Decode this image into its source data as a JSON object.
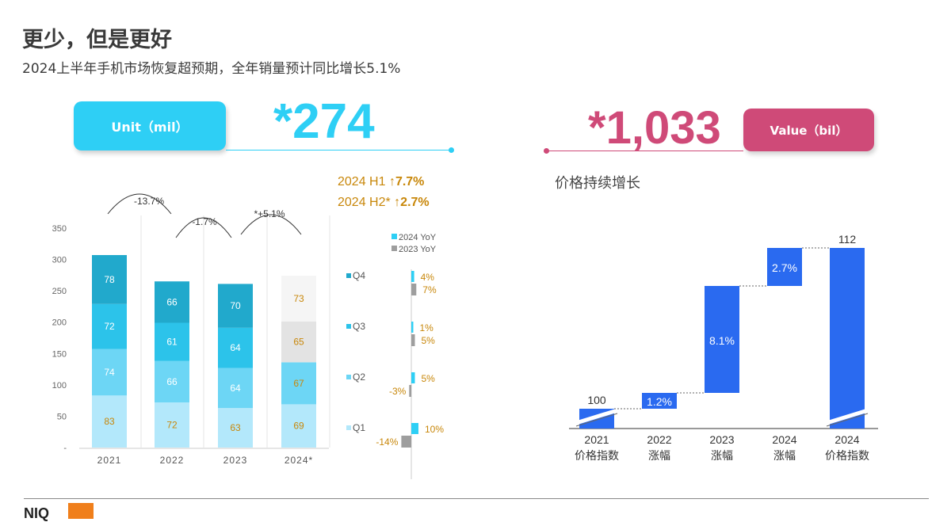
{
  "header": {
    "title": "更少，但是更好",
    "subtitle": "2024上半年手机市场恢复超预期，全年销量预计同比增长5.1%"
  },
  "unit_kpi": {
    "label": "Unit（mil）",
    "value": "*274"
  },
  "value_kpi": {
    "label": "Value（bil）",
    "value": "*1,033"
  },
  "half_year": {
    "h1_prefix": "2024 H1 ↑",
    "h1_value": "7.7%",
    "h2_prefix": "2024 H2* ↑",
    "h2_value": "2.7%"
  },
  "right_title": "价格持续增长",
  "colors": {
    "q4": "#21a9cc",
    "q3": "#2cc3ea",
    "q2": "#6dd6f5",
    "q1": "#b3e8fb",
    "est_q4": "#f5f5f5",
    "est_q3": "#e3e3e3",
    "yoy2024": "#2ecff5",
    "yoy2023": "#9e9e9e",
    "waterfall": "#2a6af0",
    "orange": "#c8870a"
  },
  "chart_data": [
    {
      "type": "bar",
      "stacked": true,
      "categories": [
        "2021",
        "2022",
        "2023",
        "2024*"
      ],
      "series": [
        {
          "name": "Q1",
          "values": [
            83,
            72,
            63,
            69
          ]
        },
        {
          "name": "Q2",
          "values": [
            74,
            66,
            64,
            67
          ]
        },
        {
          "name": "Q3",
          "values": [
            72,
            61,
            64,
            65
          ]
        },
        {
          "name": "Q4",
          "values": [
            78,
            66,
            70,
            73
          ]
        }
      ],
      "yticks": [
        "-",
        "50",
        "100",
        "150",
        "200",
        "250",
        "300",
        "350"
      ],
      "ylim": [
        0,
        350
      ],
      "growth_annotations": [
        "-13.7%",
        "-1.7%",
        "*+5.1%"
      ]
    },
    {
      "type": "bar",
      "orientation": "horizontal",
      "categories": [
        "Q4",
        "Q3",
        "Q2",
        "Q1"
      ],
      "series": [
        {
          "name": "2024 YoY",
          "values": [
            4,
            1,
            5,
            10
          ]
        },
        {
          "name": "2023 YoY",
          "values": [
            7,
            5,
            -3,
            -14
          ]
        }
      ],
      "labels_2024": [
        "4%",
        "1%",
        "5%",
        "10%"
      ],
      "labels_2023": [
        "7%",
        "5%",
        "-3%",
        "-14%"
      ]
    },
    {
      "type": "bar",
      "subtype": "waterfall",
      "categories": [
        "2021\n价格指数",
        "2022\n涨幅",
        "2023\n涨幅",
        "2024\n涨幅",
        "2024\n价格指数"
      ],
      "values": [
        100,
        1.2,
        8.1,
        2.7,
        112
      ],
      "labels": [
        "100",
        "1.2%",
        "8.1%",
        "2.7%",
        "112"
      ]
    }
  ]
}
